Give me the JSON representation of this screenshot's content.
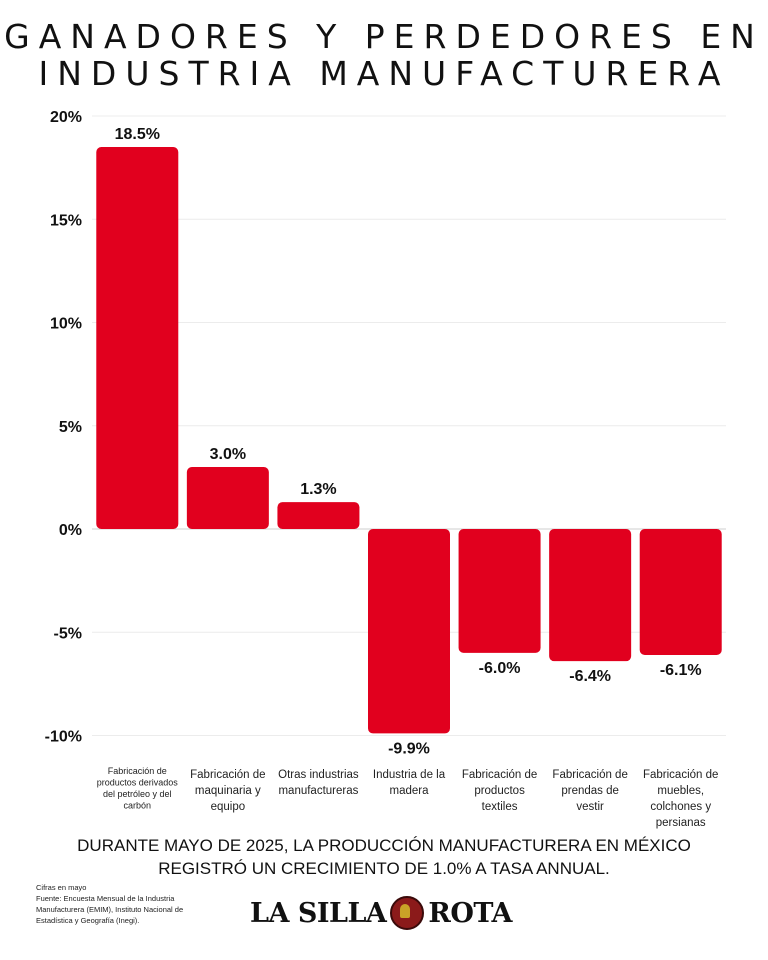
{
  "title": {
    "line1": "Ganadores y perdedores en",
    "line2": "industria manufacturera"
  },
  "chart_data": {
    "type": "bar",
    "title": "Ganadores y perdedores en industria manufacturera",
    "categories": [
      [
        "Fabricación de",
        "productos derivados",
        "del petróleo y del",
        "carbón"
      ],
      [
        "Fabricación de",
        "maquinaria y",
        "equipo"
      ],
      [
        "Otras industrias",
        "manufactureras"
      ],
      [
        "Industria de la",
        "madera"
      ],
      [
        "Fabricación de",
        "productos",
        "textiles"
      ],
      [
        "Fabricación de",
        "prendas de",
        "vestir"
      ],
      [
        "Fabricación de",
        "muebles,",
        "colchones y",
        "persianas"
      ]
    ],
    "values": [
      18.5,
      3.0,
      1.3,
      -9.9,
      -6.0,
      -6.4,
      -6.1
    ],
    "value_labels": [
      "18.5%",
      "3.0%",
      "1.3%",
      "-9.9%",
      "-6.0%",
      "-6.4%",
      "-6.1%"
    ],
    "yticks": [
      20,
      15,
      10,
      5,
      0,
      -5,
      -10
    ],
    "ytick_labels": [
      "20%",
      "15%",
      "10%",
      "5%",
      "0%",
      "-5%",
      "-10%"
    ],
    "ylim": [
      -10,
      20
    ],
    "xlabel": "",
    "ylabel": "",
    "grid": true,
    "bar_color": "#e1001e"
  },
  "caption": {
    "line1": "DURANTE MAYO DE 2025, LA PRODUCCIÓN MANUFACTURERA EN MÉXICO",
    "line2": "REGISTRÓ UN CRECIMIENTO DE 1.0% A TASA ANNUAL."
  },
  "notes": {
    "line1": "Cifras en mayo",
    "line2": "Fuente: Encuesta Mensual de la Industria",
    "line3": "Manufacturera (EMIM), Instituto Nacional de",
    "line4": "Estadística y Geografía (Inegi)."
  },
  "logo": {
    "left": "LA SILLA",
    "right": "ROTA"
  }
}
